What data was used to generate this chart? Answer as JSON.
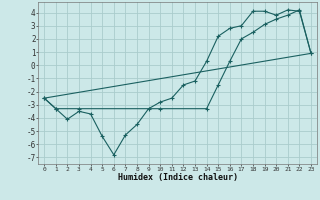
{
  "xlabel": "Humidex (Indice chaleur)",
  "background_color": "#cce8e8",
  "grid_color": "#aacccc",
  "line_color": "#1a6060",
  "xlim": [
    -0.5,
    23.5
  ],
  "ylim": [
    -7.5,
    4.8
  ],
  "xticks": [
    0,
    1,
    2,
    3,
    4,
    5,
    6,
    7,
    8,
    9,
    10,
    11,
    12,
    13,
    14,
    15,
    16,
    17,
    18,
    19,
    20,
    21,
    22,
    23
  ],
  "yticks": [
    -7,
    -6,
    -5,
    -4,
    -3,
    -2,
    -1,
    0,
    1,
    2,
    3,
    4
  ],
  "line1_x": [
    0,
    1,
    2,
    3,
    4,
    5,
    6,
    7,
    8,
    9,
    10,
    11,
    12,
    13,
    14,
    15,
    16,
    17,
    18,
    19,
    20,
    21,
    22,
    23
  ],
  "line1_y": [
    -2.5,
    -3.3,
    -4.1,
    -3.5,
    -3.7,
    -5.4,
    -6.8,
    -5.3,
    -4.5,
    -3.3,
    -2.8,
    -2.5,
    -1.5,
    -1.2,
    0.3,
    2.2,
    2.8,
    3.0,
    4.1,
    4.1,
    3.8,
    4.2,
    4.1,
    0.9
  ],
  "line2_x": [
    0,
    1,
    3,
    10,
    14,
    15,
    16,
    17,
    18,
    19,
    20,
    21,
    22,
    23
  ],
  "line2_y": [
    -2.5,
    -3.3,
    -3.3,
    -3.3,
    -3.3,
    -1.5,
    0.3,
    2.0,
    2.5,
    3.1,
    3.5,
    3.8,
    4.2,
    0.9
  ],
  "line3_x": [
    0,
    23
  ],
  "line3_y": [
    -2.5,
    0.9
  ]
}
